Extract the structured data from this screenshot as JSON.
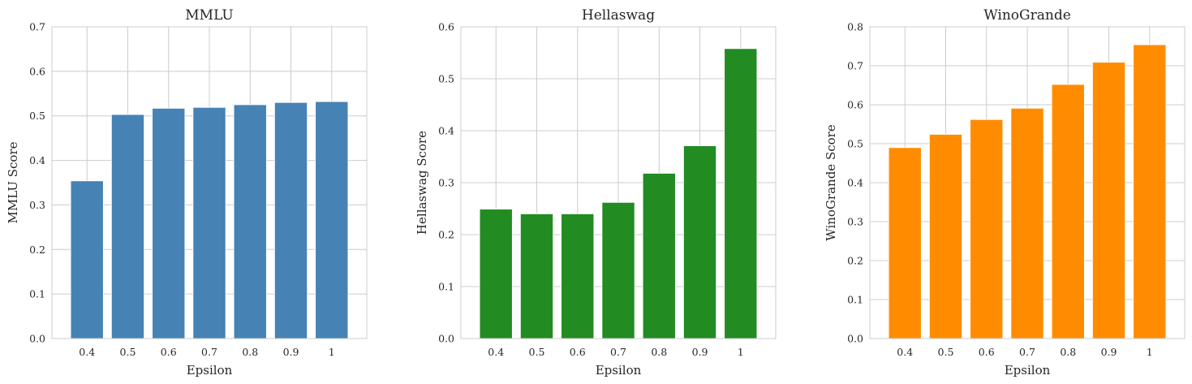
{
  "chart_data": [
    {
      "type": "bar",
      "title": "MMLU",
      "xlabel": "Epsilon",
      "ylabel": "MMLU Score",
      "categories": [
        "0.4",
        "0.5",
        "0.6",
        "0.7",
        "0.8",
        "0.9",
        "1"
      ],
      "values": [
        0.354,
        0.503,
        0.517,
        0.519,
        0.525,
        0.53,
        0.532
      ],
      "ylim": [
        0,
        0.7
      ],
      "yticks": [
        "0.0",
        "0.1",
        "0.2",
        "0.3",
        "0.4",
        "0.5",
        "0.6",
        "0.7"
      ],
      "grid": true,
      "color": "#4682b4"
    },
    {
      "type": "bar",
      "title": "Hellaswag",
      "xlabel": "Epsilon",
      "ylabel": "Hellaswag Score",
      "categories": [
        "0.4",
        "0.5",
        "0.6",
        "0.7",
        "0.8",
        "0.9",
        "1"
      ],
      "values": [
        0.249,
        0.24,
        0.24,
        0.262,
        0.318,
        0.371,
        0.558
      ],
      "ylim": [
        0,
        0.6
      ],
      "yticks": [
        "0.0",
        "0.1",
        "0.2",
        "0.3",
        "0.4",
        "0.5",
        "0.6"
      ],
      "grid": true,
      "color": "#228b22"
    },
    {
      "type": "bar",
      "title": "WinoGrande",
      "xlabel": "Epsilon",
      "ylabel": "WinoGrande Score",
      "categories": [
        "0.4",
        "0.5",
        "0.6",
        "0.7",
        "0.8",
        "0.9",
        "1"
      ],
      "values": [
        0.49,
        0.524,
        0.562,
        0.591,
        0.652,
        0.709,
        0.754
      ],
      "ylim": [
        0,
        0.8
      ],
      "yticks": [
        "0.0",
        "0.1",
        "0.2",
        "0.3",
        "0.4",
        "0.5",
        "0.6",
        "0.7",
        "0.8"
      ],
      "grid": true,
      "color": "#ff8c00"
    }
  ]
}
